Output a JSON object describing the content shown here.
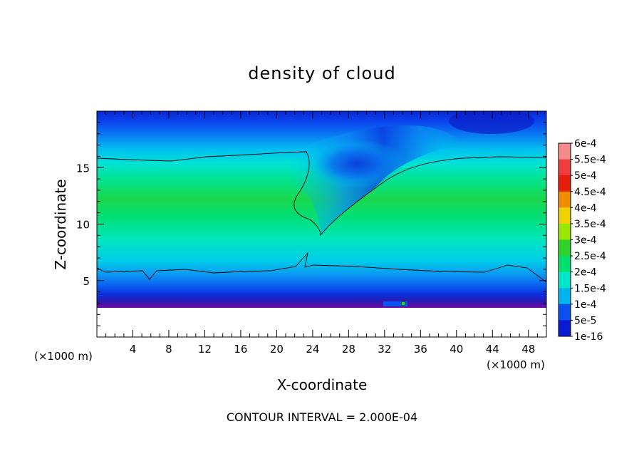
{
  "chart_data": {
    "type": "heatmap",
    "title": "density of cloud",
    "xlabel": "X-coordinate",
    "ylabel": "Z-coordinate",
    "x_unit": "(×1000 m)",
    "y_unit": "(×1000 m)",
    "footer": "CONTOUR INTERVAL = 2.000E-04",
    "xlim": [
      0,
      50
    ],
    "ylim": [
      0,
      20
    ],
    "x_ticks": [
      4,
      8,
      12,
      16,
      20,
      24,
      28,
      32,
      36,
      40,
      44,
      48
    ],
    "y_ticks": [
      5,
      10,
      15
    ],
    "colorbar": {
      "labels": [
        "6e-4",
        "5.5e-4",
        "5e-4",
        "4.5e-4",
        "4e-4",
        "3.5e-4",
        "3e-4",
        "2.5e-4",
        "2e-4",
        "1.5e-4",
        "1e-4",
        "5e-5",
        "1e-16"
      ],
      "colors": [
        "#f58a8a",
        "#f03c3c",
        "#e61e0a",
        "#f08c00",
        "#f0d200",
        "#9be600",
        "#2fd22a",
        "#00e06e",
        "#00e6c8",
        "#00b4f0",
        "#0a50f0",
        "#0a1ad2",
        "#5a0aa0"
      ]
    },
    "contour_levels": [
      0.0002
    ],
    "features": {
      "cloud_base_km": 2.6,
      "contour_lower_km": 6.0,
      "contour_upper_km": 15.8,
      "dry_slot_x_km": 24.5
    }
  }
}
